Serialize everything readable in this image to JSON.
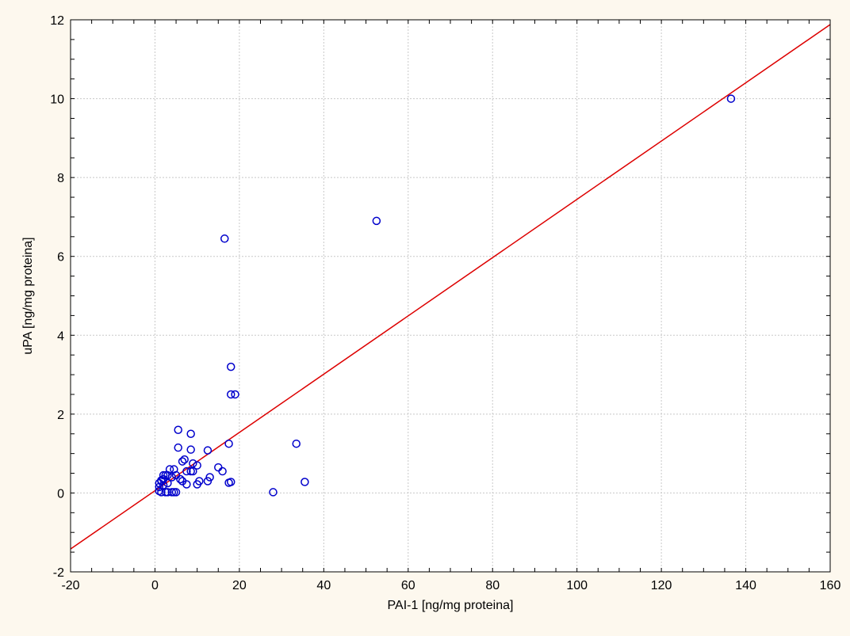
{
  "chart_data": {
    "type": "scatter",
    "title": "",
    "xlabel": "PAI-1 [ng/mg proteina]",
    "ylabel": "uPA [ng/mg proteina]",
    "xlim": [
      -20,
      160
    ],
    "ylim": [
      -2,
      12
    ],
    "xticks": [
      -20,
      0,
      20,
      40,
      60,
      80,
      100,
      120,
      140,
      160
    ],
    "yticks": [
      -2,
      0,
      2,
      4,
      6,
      8,
      10,
      12
    ],
    "grid": true,
    "legend": "none",
    "colors": {
      "points": "#0000cc",
      "fit_line": "#dd0000",
      "grid": "#c8c8c8",
      "plot_background": "#ffffff",
      "page_background": "#fdf8ee"
    },
    "points": [
      [
        136.5,
        10.0
      ],
      [
        52.5,
        6.9
      ],
      [
        16.5,
        6.45
      ],
      [
        18.0,
        3.2
      ],
      [
        18.0,
        2.5
      ],
      [
        19.0,
        2.5
      ],
      [
        17.5,
        1.25
      ],
      [
        33.5,
        1.25
      ],
      [
        5.5,
        1.6
      ],
      [
        8.5,
        1.5
      ],
      [
        5.5,
        1.15
      ],
      [
        8.5,
        1.1
      ],
      [
        12.5,
        1.08
      ],
      [
        7.0,
        0.85
      ],
      [
        6.5,
        0.8
      ],
      [
        9.0,
        0.75
      ],
      [
        10.0,
        0.7
      ],
      [
        15.0,
        0.65
      ],
      [
        3.5,
        0.6
      ],
      [
        4.5,
        0.6
      ],
      [
        7.5,
        0.55
      ],
      [
        8.5,
        0.55
      ],
      [
        9.0,
        0.55
      ],
      [
        16.0,
        0.55
      ],
      [
        2.0,
        0.45
      ],
      [
        2.5,
        0.45
      ],
      [
        3.0,
        0.45
      ],
      [
        5.0,
        0.45
      ],
      [
        13.0,
        0.4
      ],
      [
        4.0,
        0.4
      ],
      [
        6.0,
        0.35
      ],
      [
        2.0,
        0.35
      ],
      [
        1.5,
        0.32
      ],
      [
        10.5,
        0.3
      ],
      [
        1.5,
        0.3
      ],
      [
        12.5,
        0.3
      ],
      [
        6.5,
        0.3
      ],
      [
        35.5,
        0.28
      ],
      [
        18.0,
        0.28
      ],
      [
        17.5,
        0.26
      ],
      [
        3.0,
        0.25
      ],
      [
        1.0,
        0.25
      ],
      [
        10.0,
        0.22
      ],
      [
        7.5,
        0.22
      ],
      [
        2.0,
        0.2
      ],
      [
        1.0,
        0.15
      ],
      [
        1.5,
        0.02
      ],
      [
        2.5,
        0.02
      ],
      [
        3.0,
        0.02
      ],
      [
        4.0,
        0.02
      ],
      [
        4.5,
        0.02
      ],
      [
        5.0,
        0.02
      ],
      [
        28.0,
        0.02
      ],
      [
        1.0,
        0.05
      ]
    ],
    "fit_line": {
      "x": [
        -20,
        160
      ],
      "y": [
        -1.42,
        11.88
      ]
    }
  }
}
